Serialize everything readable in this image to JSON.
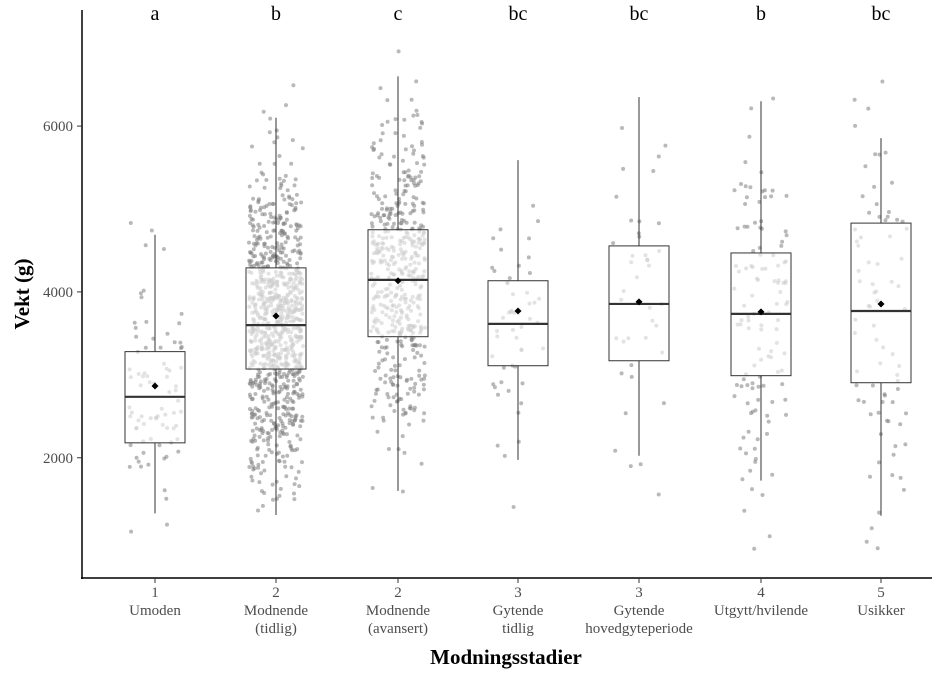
{
  "chart_data": {
    "type": "boxplot",
    "xlabel": "Modningsstadier",
    "ylabel": "Vekt (g)",
    "ylim": [
      550,
      7400
    ],
    "yticks": [
      2000,
      4000,
      6000
    ],
    "grid": false,
    "legend": "none",
    "categories": [
      {
        "code": "1",
        "label": [
          "Umoden"
        ],
        "letter": "a",
        "whisker_low": 1330,
        "q1": 2180,
        "median": 2735,
        "q3": 3280,
        "whisker_high": 4690,
        "mean": 2865
      },
      {
        "code": "2",
        "label": [
          "Modnende",
          "(tidlig)"
        ],
        "letter": "b",
        "whisker_low": 1310,
        "q1": 3070,
        "median": 3600,
        "q3": 4290,
        "whisker_high": 6100,
        "mean": 3710
      },
      {
        "code": "2",
        "label": [
          "Modnende",
          "(avansert)"
        ],
        "letter": "c",
        "whisker_low": 1600,
        "q1": 3460,
        "median": 4145,
        "q3": 4750,
        "whisker_high": 6600,
        "mean": 4135
      },
      {
        "code": "3",
        "label": [
          "Gytende",
          "tidlig"
        ],
        "letter": "bc",
        "whisker_low": 1975,
        "q1": 3110,
        "median": 3615,
        "q3": 4135,
        "whisker_high": 5590,
        "mean": 3770
      },
      {
        "code": "3",
        "label": [
          "Gytende",
          "hovedgyteperiode"
        ],
        "letter": "bc",
        "whisker_low": 2025,
        "q1": 3170,
        "median": 3855,
        "q3": 4555,
        "whisker_high": 6350,
        "mean": 3880
      },
      {
        "code": "4",
        "label": [
          "Utgytt/hvilende"
        ],
        "letter": "b",
        "whisker_low": 1725,
        "q1": 2990,
        "median": 3735,
        "q3": 4470,
        "whisker_high": 6300,
        "mean": 3760
      },
      {
        "code": "5",
        "label": [
          "Usikker"
        ],
        "letter": "bc",
        "whisker_low": 1300,
        "q1": 2905,
        "median": 3770,
        "q3": 4830,
        "whisker_high": 5855,
        "mean": 3855
      }
    ],
    "colors": {
      "points": "#7f7f7f",
      "box_fill": "#ffffff",
      "box_stroke": "#333333",
      "median": "#333333",
      "mean": "#000000"
    }
  }
}
